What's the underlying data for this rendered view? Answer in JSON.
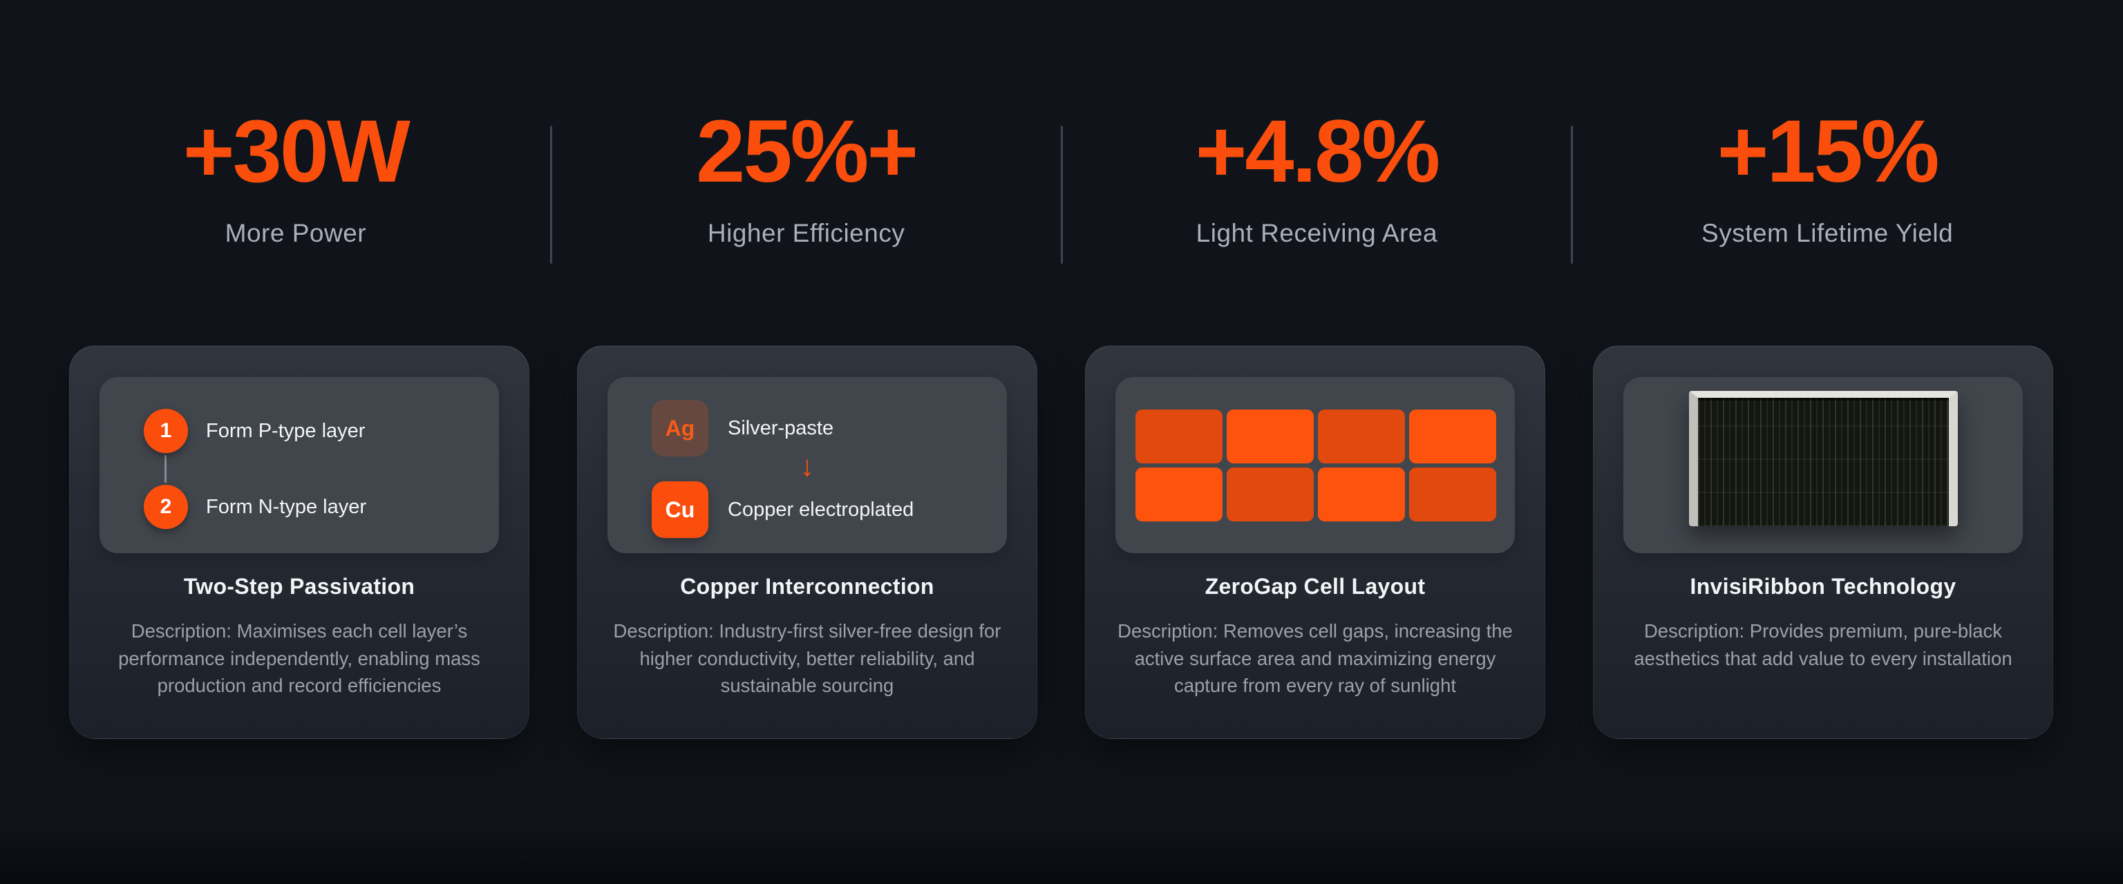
{
  "colors": {
    "background": "#10141a",
    "accent": "#fb4e0d",
    "cell_dark": "#e1490e",
    "cell_bright": "#fd530c",
    "panel": "#41464d",
    "title": "#f2f5f7",
    "description": "#9aa1aa",
    "stat_label": "#aab0b8"
  },
  "stats": [
    {
      "value": "+30W",
      "label": "More Power"
    },
    {
      "value": "25%+",
      "label": "Higher Efficiency"
    },
    {
      "value": "+4.8%",
      "label": "Light Receiving Area"
    },
    {
      "value": "+15%",
      "label": "System Lifetime Yield"
    }
  ],
  "cards": [
    {
      "title": "Two-Step Passivation",
      "description": "Description: Maximises each cell layer’s performance independently, enabling mass production and record efficiencies",
      "steps": [
        {
          "number": "1",
          "label": "Form P-type layer"
        },
        {
          "number": "2",
          "label": "Form N-type layer"
        }
      ]
    },
    {
      "title": "Copper Interconnection",
      "description": "Description: Industry-first silver-free design for higher conductivity, better reliability, and sustainable sourcing",
      "process": {
        "from_symbol": "Ag",
        "from_label": "Silver-paste",
        "arrow": "↓",
        "to_symbol": "Cu",
        "to_label": "Copper electroplated"
      }
    },
    {
      "title": "ZeroGap Cell Layout",
      "description": "Description: Removes cell gaps, increasing the active surface area and maximizing energy capture from every ray of sunlight",
      "grid": {
        "rows": 2,
        "cols": 4
      }
    },
    {
      "title": "InvisiRibbon Technology",
      "description": "Description: Provides premium, pure-black aesthetics that add value to every installation",
      "image": "black solar panel with silver frame"
    }
  ]
}
